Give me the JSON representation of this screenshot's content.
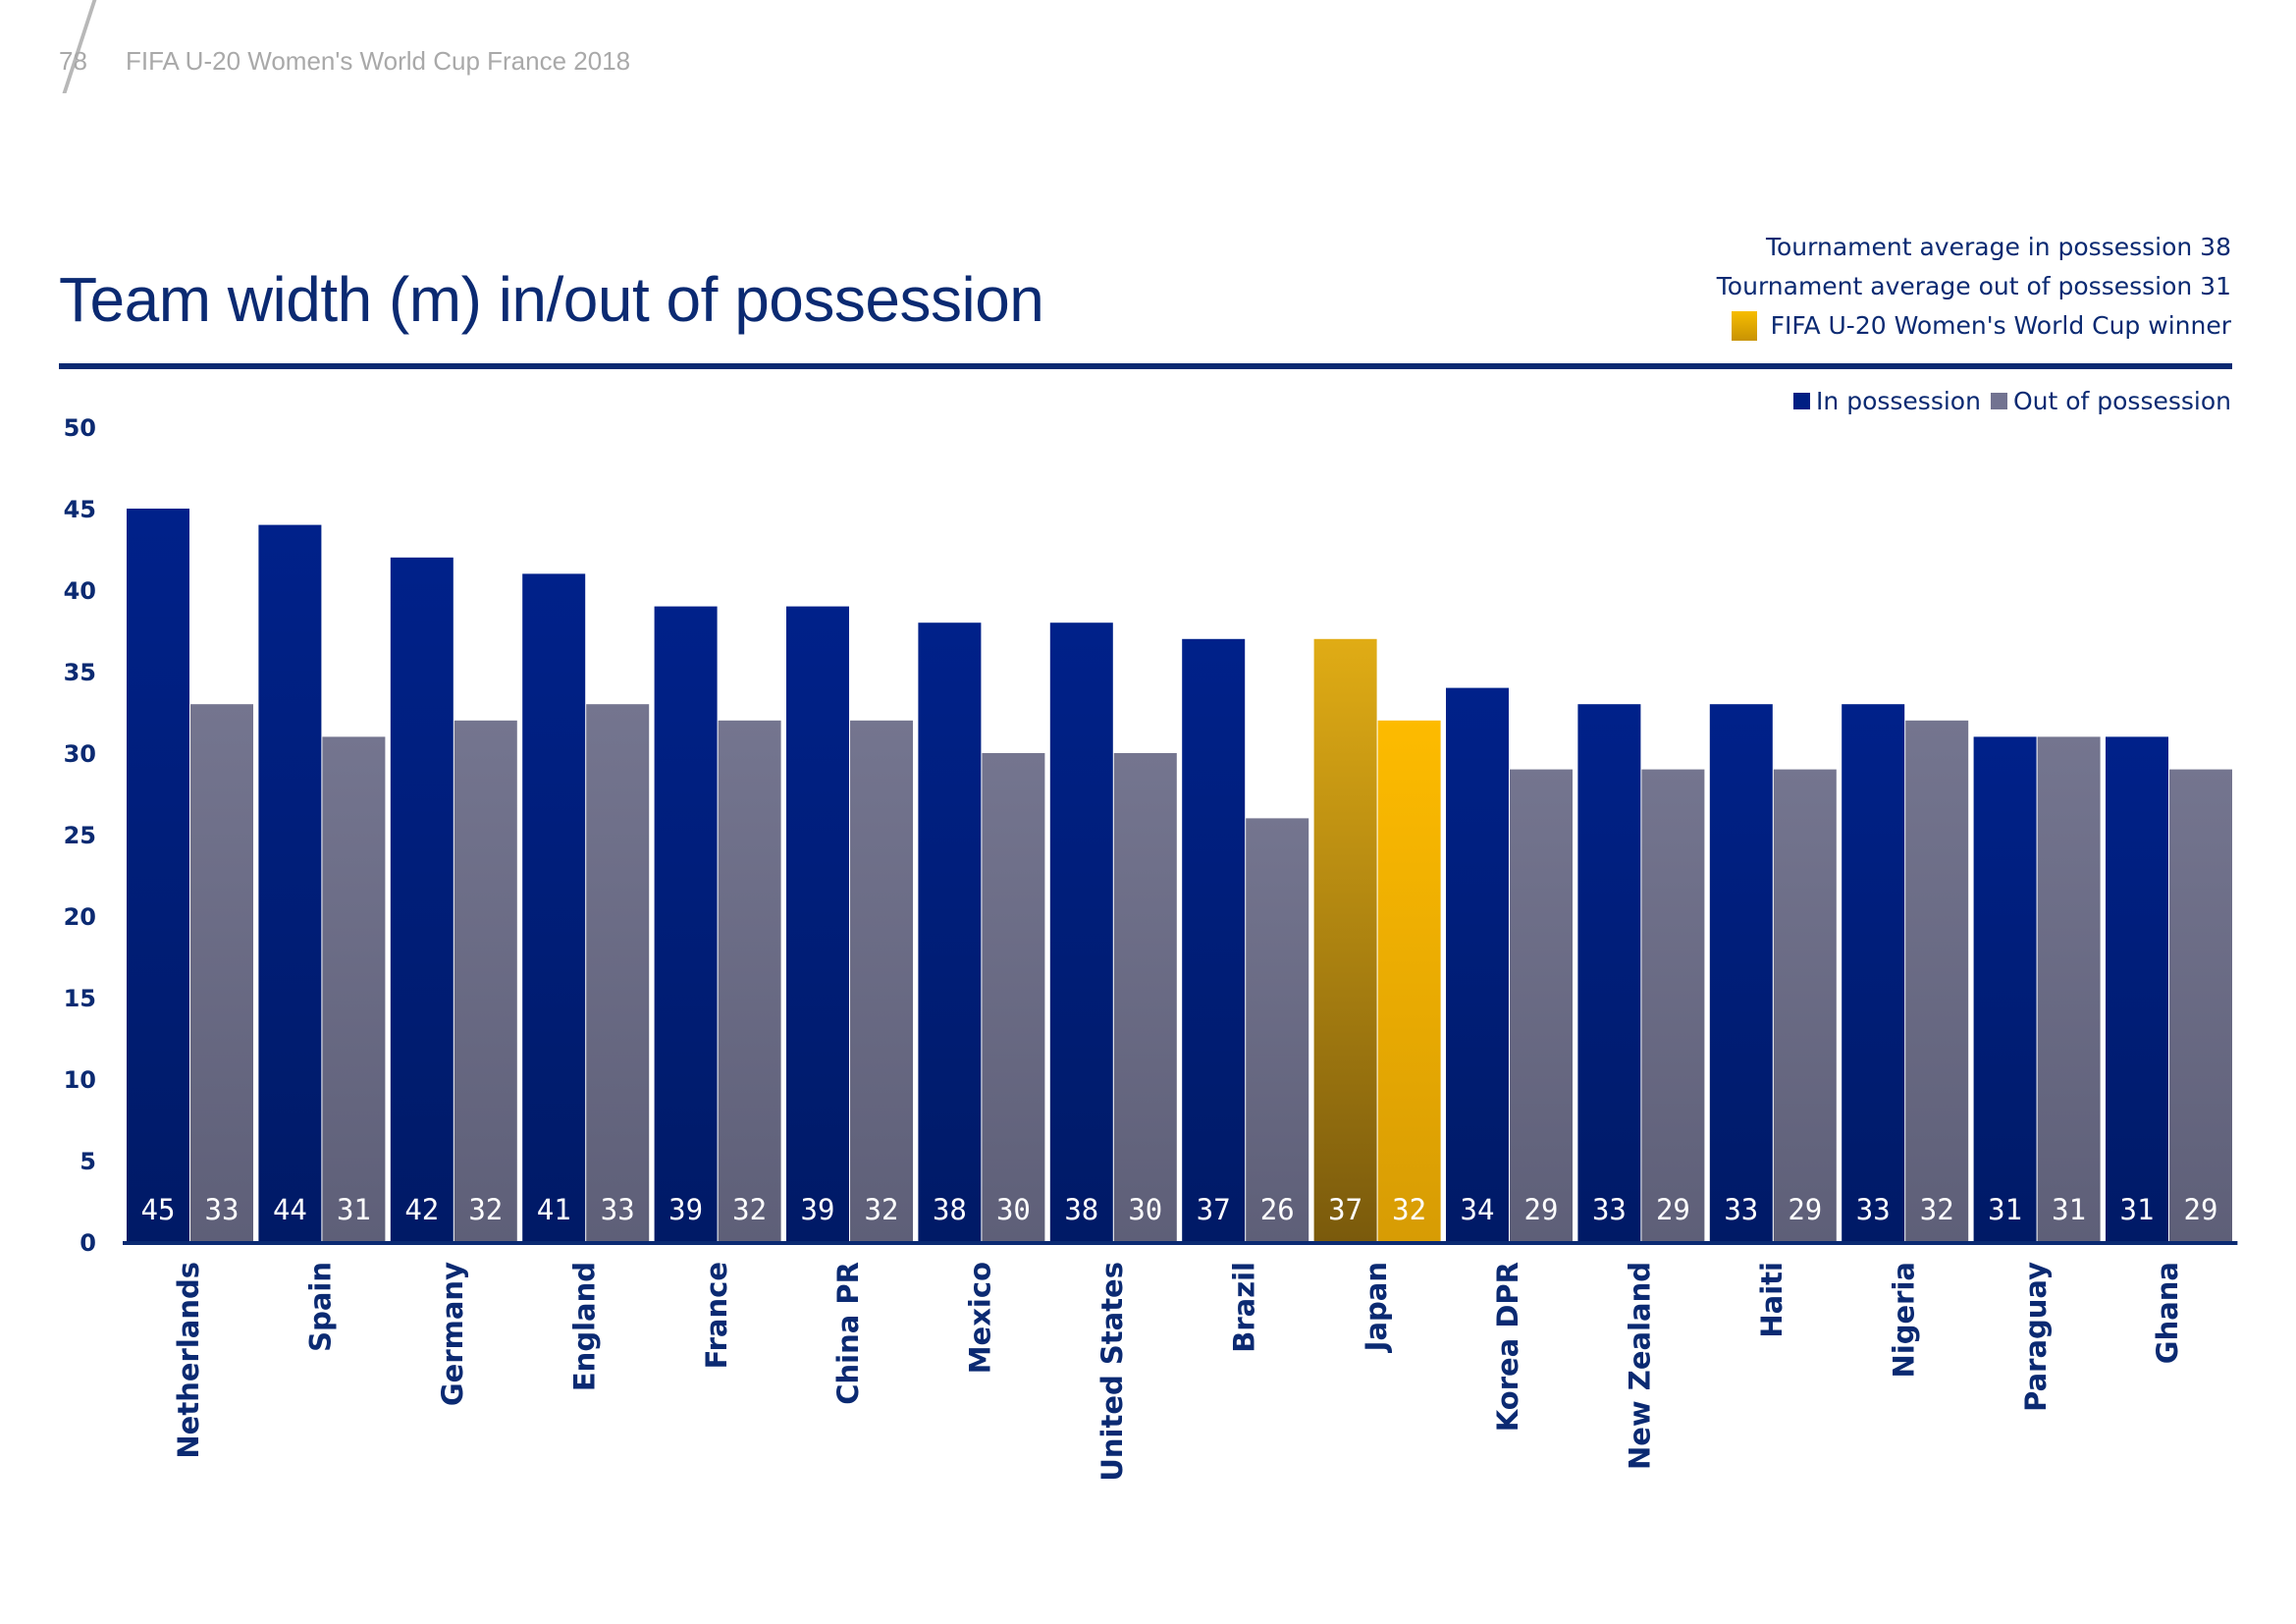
{
  "header": {
    "page_number": "78",
    "publication": "FIFA U-20 Women's World Cup France 2018"
  },
  "notes": {
    "avg_in": "Tournament average in possession 38",
    "avg_out": "Tournament average out of possession 31",
    "winner_label": "FIFA U-20 Women's World Cup winner"
  },
  "colors": {
    "in_possession": "#001f83",
    "out_of_possession": "#727391",
    "winner_in": "#d9a716",
    "winner_out": "#fbb800",
    "text": "#0b2a72"
  },
  "chart_data": {
    "type": "bar",
    "title": "Team width (m) in/out of possession",
    "xlabel": "",
    "ylabel": "",
    "ylim": [
      0,
      50
    ],
    "yticks": [
      0,
      5,
      10,
      15,
      20,
      25,
      30,
      35,
      40,
      45,
      50
    ],
    "grid": false,
    "legend_position": "top-right",
    "categories": [
      "Netherlands",
      "Spain",
      "Germany",
      "England",
      "France",
      "China PR",
      "Mexico",
      "United States",
      "Brazil",
      "Japan",
      "Korea DPR",
      "New Zealand",
      "Haiti",
      "Nigeria",
      "Paraguay",
      "Ghana"
    ],
    "highlight_category": "Japan",
    "series": [
      {
        "name": "In possession",
        "values": [
          45,
          44,
          42,
          41,
          39,
          39,
          38,
          38,
          37,
          37,
          34,
          33,
          33,
          33,
          31,
          31
        ]
      },
      {
        "name": "Out of possession",
        "values": [
          33,
          31,
          32,
          33,
          32,
          32,
          30,
          30,
          26,
          32,
          29,
          29,
          29,
          32,
          31,
          29
        ]
      }
    ],
    "annotations": {
      "tournament_average_in_possession": 38,
      "tournament_average_out_of_possession": 31
    }
  }
}
